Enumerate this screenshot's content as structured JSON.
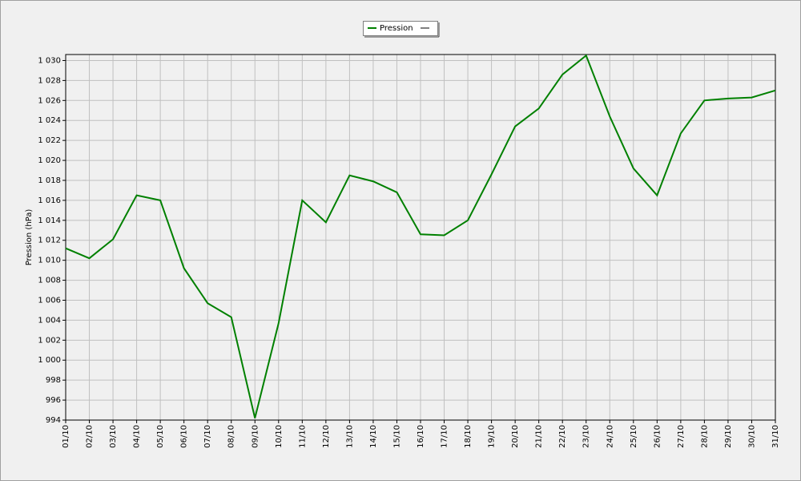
{
  "chart_data": {
    "type": "line",
    "y_label": "Pression (hPa)",
    "categories": [
      "01/10",
      "02/10",
      "03/10",
      "04/10",
      "05/10",
      "06/10",
      "07/10",
      "08/10",
      "09/10",
      "10/10",
      "11/10",
      "12/10",
      "13/10",
      "14/10",
      "15/10",
      "16/10",
      "17/10",
      "18/10",
      "19/10",
      "20/10",
      "21/10",
      "22/10",
      "23/10",
      "24/10",
      "25/10",
      "26/10",
      "27/10",
      "28/10",
      "29/10",
      "30/10",
      "31/10"
    ],
    "series": [
      {
        "name": "Pression",
        "color": "#008000",
        "values": [
          1011.2,
          1010.2,
          1012.1,
          1016.5,
          1016.0,
          1009.2,
          1005.7,
          1004.3,
          994.2,
          1003.7,
          1016.0,
          1013.8,
          1018.5,
          1017.9,
          1016.8,
          1012.6,
          1012.5,
          1014.0,
          1018.6,
          1023.4,
          1025.2,
          1028.6,
          1030.5,
          1024.4,
          1019.2,
          1016.5,
          1022.7,
          1026.0,
          1026.2,
          1026.3,
          1027.0
        ]
      }
    ],
    "ylim": [
      994,
      1030.6
    ],
    "yticks": [
      994,
      996,
      998,
      {
        "value": 1000,
        "label": "1 000"
      },
      {
        "value": 1002,
        "label": "1 002"
      },
      {
        "value": 1004,
        "label": "1 004"
      },
      {
        "value": 1006,
        "label": "1 006"
      },
      {
        "value": 1008,
        "label": "1 008"
      },
      {
        "value": 1010,
        "label": "1 010"
      },
      {
        "value": 1012,
        "label": "1 012"
      },
      {
        "value": 1014,
        "label": "1 014"
      },
      {
        "value": 1016,
        "label": "1 016"
      },
      {
        "value": 1018,
        "label": "1 018"
      },
      {
        "value": 1020,
        "label": "1 020"
      },
      {
        "value": 1022,
        "label": "1 022"
      },
      {
        "value": 1024,
        "label": "1 024"
      },
      {
        "value": 1026,
        "label": "1 026"
      },
      {
        "value": 1028,
        "label": "1 028"
      },
      {
        "value": 1030,
        "label": "1 030"
      }
    ],
    "grid": true
  }
}
